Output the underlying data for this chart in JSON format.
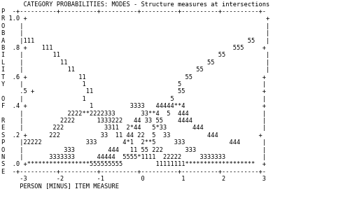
{
  "background": "#ffffff",
  "lines": [
    "      CATEGORY PROBABILITIES: MODES - Structure measures at intersections",
    "P  -+----------+----------+----------+----------+----------+----------+-",
    "R 1.0 +                                                                 +",
    "O    |                                                                  |",
    "B    |                                                                  |",
    "A    |111                                                          55   |",
    "B  .8 +    111                                                 555     +",
    "I    |        11                                           55           |",
    "L    |          11                                      55              |",
    "I    |            11                                 55                 |",
    "T  .6 +              11                           55                   +",
    "Y    |                1                         5                      |",
    "     .5 +              11                       55                     +",
    "O    |                1                       5                        |",
    "F  .4 +                 1          3333   44444**4                     +",
    "     |            2222**2222333       33**4  5  444                    |",
    "R    |          2222      1333222   44 33 55    4444                   |",
    "E    |        222           3311  2*44   5*33       444                |",
    "S  .2 +      222           33  11 44 22  5  33          444           +",
    "P    |22222            333       4*1  2**5     333            444      |",
    "O    |           333         444   11 55 222      333                  |",
    "N    |       3333333      44444  5555*1111  22222     3333333          |",
    "S  .0 +*****************555555555         11111111*******************  +",
    "E  -+----------+----------+----------+----------+----------+----------+-",
    "     -3        -2         -1          0          1          2          3",
    "     PERSON [MINUS] ITEM MEASURE"
  ]
}
